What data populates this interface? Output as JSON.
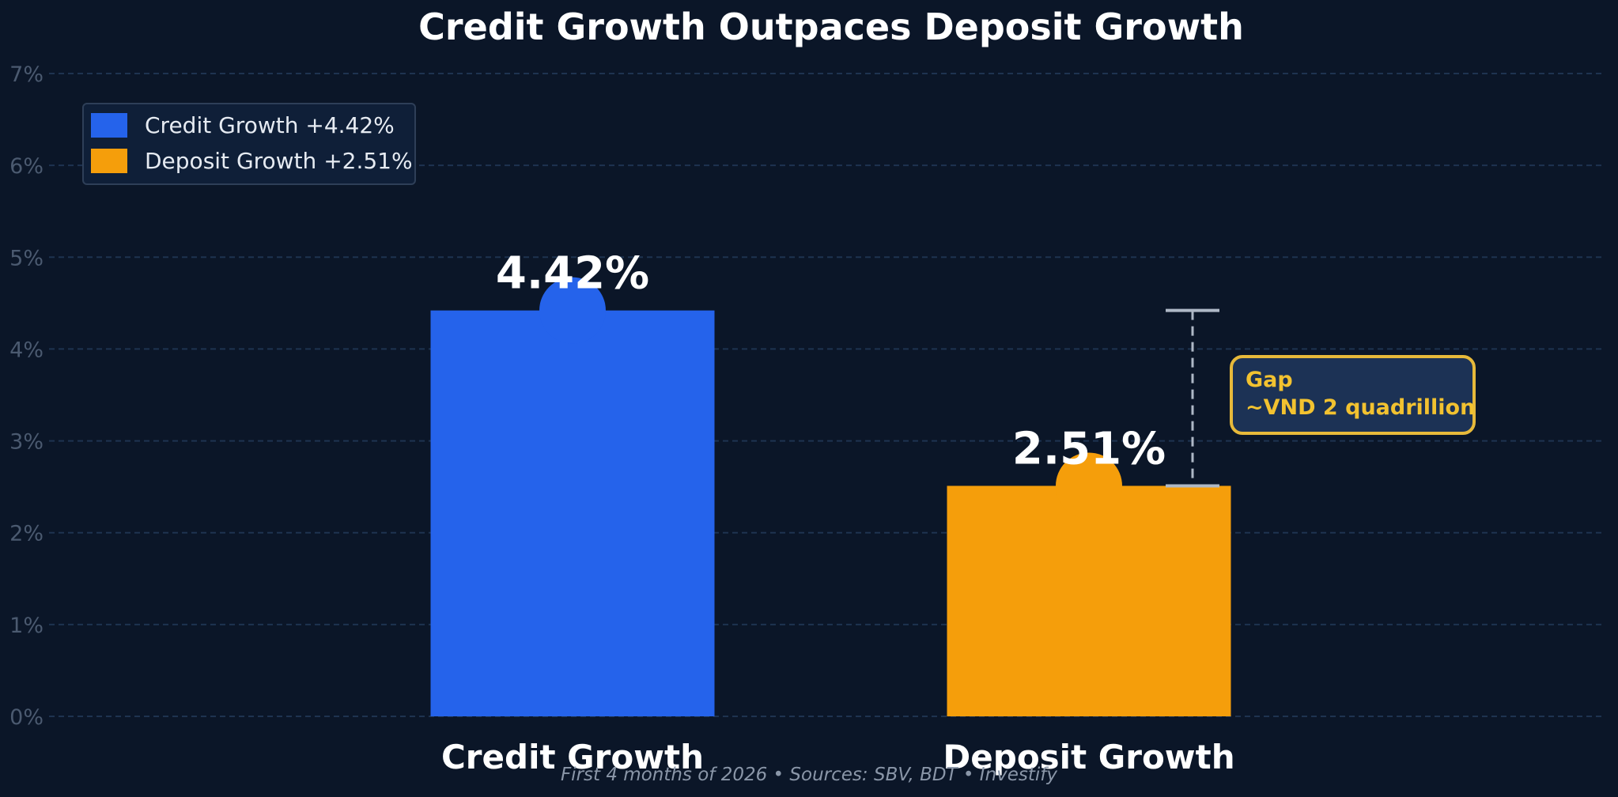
{
  "chart_data": {
    "type": "bar",
    "title": "Credit Growth Outpaces Deposit Growth",
    "categories": [
      "Credit Growth",
      "Deposit Growth"
    ],
    "values": [
      4.42,
      2.51
    ],
    "value_labels": [
      "4.42%",
      "2.51%"
    ],
    "colors": [
      "#2563eb",
      "#f59e0b"
    ],
    "ylim": [
      0,
      7
    ],
    "yticks": [
      0,
      1,
      2,
      3,
      4,
      5,
      6,
      7
    ],
    "ytick_labels": [
      "0%",
      "1%",
      "2%",
      "3%",
      "4%",
      "5%",
      "6%",
      "7%"
    ],
    "grid": true,
    "legend": {
      "placement": "top-left",
      "entries": [
        {
          "label": "Credit Growth  +4.42%",
          "color": "#2563eb"
        },
        {
          "label": "Deposit Growth  +2.51%",
          "color": "#f59e0b"
        }
      ]
    },
    "annotation": {
      "lines": [
        "Gap",
        "~VND 2 quadrillion"
      ],
      "from_value": 2.51,
      "to_value": 4.42,
      "color": "#f2c230"
    },
    "footer": "First 4 months of 2026  •  Sources: SBV, BDT  •  Investify"
  }
}
